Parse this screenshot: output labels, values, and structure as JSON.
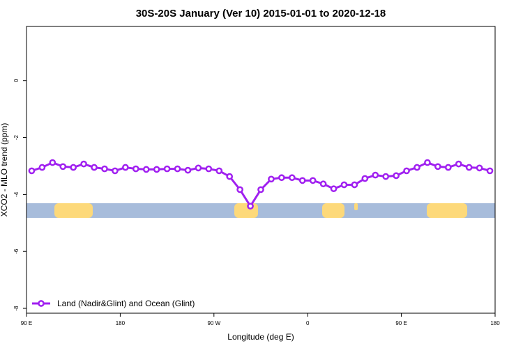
{
  "chart_data": {
    "type": "line",
    "title": "30S-20S January (Ver 10)   2015-01-01 to 2020-12-18",
    "x_label": "Longitude (deg E)",
    "y_label": "XCO2 - MLO trend (ppm)",
    "x": [
      95,
      105,
      115,
      125,
      135,
      145,
      155,
      165,
      175,
      185,
      195,
      205,
      215,
      225,
      235,
      245,
      255,
      265,
      275,
      285,
      295,
      305,
      315,
      325,
      335,
      345,
      355,
      365,
      375,
      385,
      395,
      405,
      415,
      425,
      435,
      445,
      455,
      465,
      475,
      485,
      495,
      505,
      515,
      525,
      535
    ],
    "series": [
      {
        "name": "Land (Nadir&Glint) and Ocean (Glint)",
        "color": "#a020f0",
        "values": [
          -3.17,
          -3.05,
          -2.88,
          -3.02,
          -3.05,
          -2.93,
          -3.05,
          -3.1,
          -3.17,
          -3.05,
          -3.1,
          -3.12,
          -3.12,
          -3.1,
          -3.1,
          -3.15,
          -3.07,
          -3.1,
          -3.17,
          -3.37,
          -3.83,
          -4.41,
          -3.83,
          -3.46,
          -3.41,
          -3.41,
          -3.51,
          -3.51,
          -3.63,
          -3.8,
          -3.66,
          -3.66,
          -3.44,
          -3.32,
          -3.37,
          -3.34,
          -3.17,
          -3.05,
          -2.88,
          -3.02,
          -3.05,
          -2.93,
          -3.05,
          -3.07,
          -3.17
        ]
      }
    ],
    "xlim": [
      90,
      540
    ],
    "xticks": [
      {
        "value": 90,
        "label": "90 E"
      },
      180,
      {
        "value": 270,
        "label": "90 W"
      },
      {
        "value": 360,
        "label": "0"
      },
      {
        "value": 450,
        "label": "90 E"
      },
      {
        "value": 540,
        "label": "180"
      }
    ],
    "ylim": [
      -8.17,
      1.9
    ],
    "yticks": [
      0,
      -2,
      -4,
      -6,
      -8
    ],
    "legend": "bottom-left"
  }
}
